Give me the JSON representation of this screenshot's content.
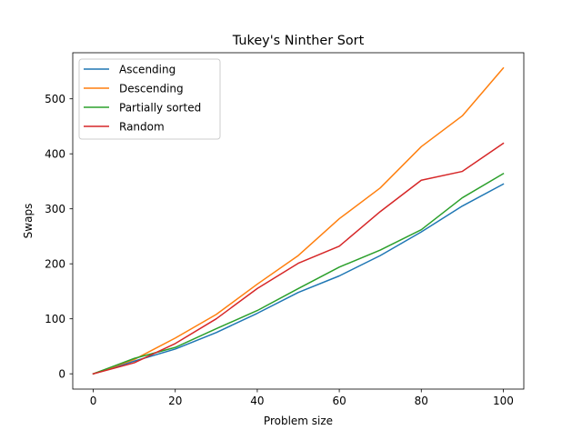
{
  "chart_data": {
    "type": "line",
    "title": "Tukey's Ninther Sort",
    "xlabel": "Problem size",
    "ylabel": "Swaps",
    "xlim": [
      -5,
      105
    ],
    "ylim": [
      -27.8,
      583.8
    ],
    "xticks": [
      0,
      20,
      40,
      60,
      80,
      100
    ],
    "yticks": [
      0,
      100,
      200,
      300,
      400,
      500
    ],
    "grid": false,
    "legend_position": "upper-left",
    "x": [
      0,
      10,
      20,
      30,
      40,
      50,
      60,
      70,
      80,
      90,
      100
    ],
    "series": [
      {
        "name": "Ascending",
        "color": "#1f77b4",
        "values": [
          0,
          23,
          45,
          75,
          110,
          148,
          178,
          215,
          258,
          305,
          345
        ]
      },
      {
        "name": "Descending",
        "color": "#ff7f0e",
        "values": [
          0,
          26,
          65,
          108,
          163,
          215,
          282,
          338,
          413,
          469,
          556
        ]
      },
      {
        "name": "Partially sorted",
        "color": "#2ca02c",
        "values": [
          0,
          28,
          48,
          82,
          115,
          155,
          194,
          225,
          262,
          320,
          364
        ]
      },
      {
        "name": "Random",
        "color": "#d62728",
        "values": [
          0,
          20,
          55,
          100,
          155,
          201,
          232,
          295,
          352,
          368,
          419
        ]
      }
    ]
  }
}
